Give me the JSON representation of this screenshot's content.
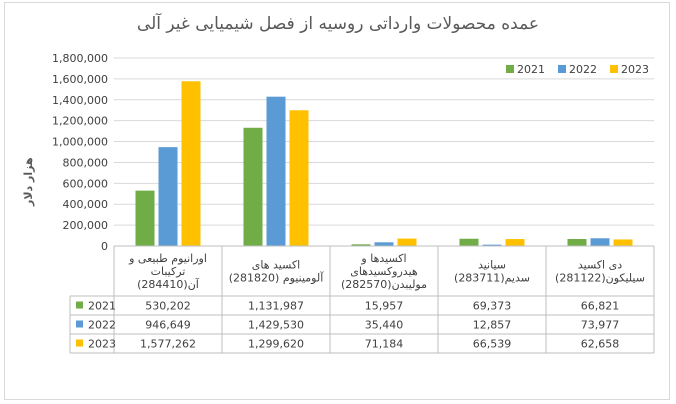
{
  "chart_data": {
    "type": "bar",
    "title": "عمده محصولات وارداتی روسیه از فصل شیمیایی غیر آلی",
    "ylabel": "هزار دلار",
    "ylim": [
      0,
      1800000
    ],
    "yticks": [
      "0",
      "200,000",
      "400,000",
      "600,000",
      "800,000",
      "1,000,000",
      "1,200,000",
      "1,400,000",
      "1,600,000",
      "1,800,000"
    ],
    "grid": true,
    "legend_position": "top-right",
    "categories": [
      {
        "lines": [
          "اورانیوم طبیعی و",
          "ترکیبات",
          "آن(284410)"
        ]
      },
      {
        "lines": [
          "اکسید های",
          "آلومینیوم (281820)"
        ]
      },
      {
        "lines": [
          "اکسیدها و",
          "هیدروکسیدهای",
          "مولیبدن(282570)"
        ]
      },
      {
        "lines": [
          "سیانید",
          "سدیم(283711)"
        ]
      },
      {
        "lines": [
          "دی اکسید",
          "سیلیکون(281122)"
        ]
      }
    ],
    "series": [
      {
        "name": "2021",
        "color": "#70ad47",
        "values": [
          530202,
          1131987,
          15957,
          69373,
          66821
        ],
        "labels": [
          "530,202",
          "1,131,987",
          "15,957",
          "69,373",
          "66,821"
        ]
      },
      {
        "name": "2022",
        "color": "#5b9bd5",
        "values": [
          946649,
          1429530,
          35440,
          12857,
          73977
        ],
        "labels": [
          "946,649",
          "1,429,530",
          "35,440",
          "12,857",
          "73,977"
        ]
      },
      {
        "name": "2023",
        "color": "#ffc000",
        "values": [
          1577262,
          1299620,
          71184,
          66539,
          62658
        ],
        "labels": [
          "1,577,262",
          "1,299,620",
          "71,184",
          "66,539",
          "62,658"
        ]
      }
    ]
  }
}
